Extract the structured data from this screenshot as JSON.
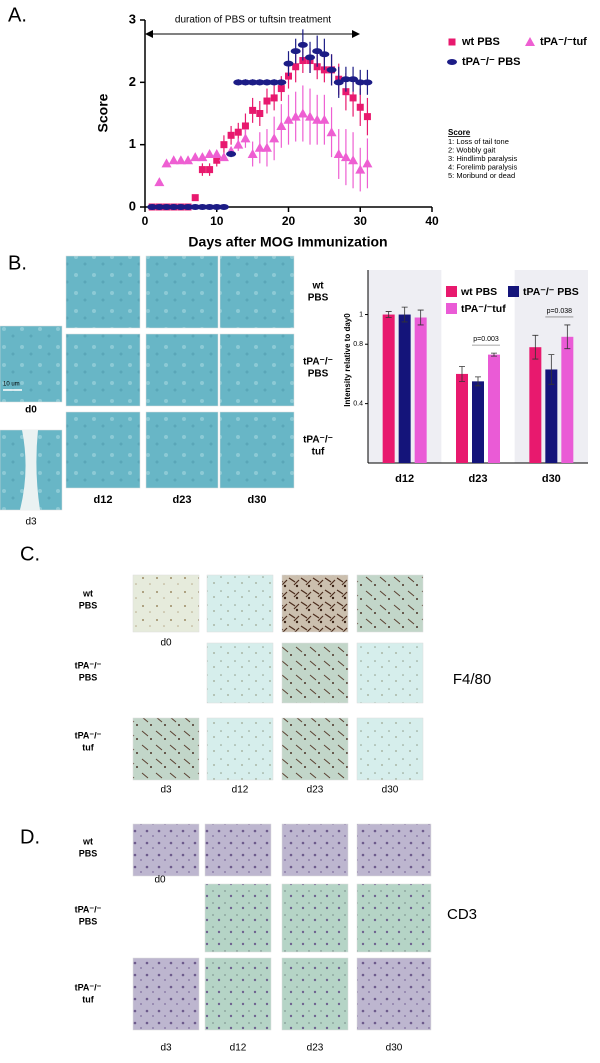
{
  "panel_labels": [
    "A.",
    "B.",
    "C.",
    "D."
  ],
  "chart_data": [
    {
      "type": "scatter",
      "ylabel": "Score",
      "xlabel": "Days after MOG Immunization",
      "annotation": "duration of PBS or tuftsin treatment",
      "xlim": [
        0,
        40
      ],
      "xticks": [
        0,
        10,
        20,
        30,
        40
      ],
      "ylim": [
        0,
        3
      ],
      "yticks": [
        0,
        1,
        2,
        3
      ],
      "series": [
        {
          "name": "wt PBS",
          "color": "#e8196e",
          "marker": "square",
          "x": [
            1,
            2,
            3,
            4,
            5,
            6,
            7,
            8,
            9,
            10,
            11,
            12,
            13,
            14,
            15,
            16,
            17,
            18,
            19,
            20,
            21,
            22,
            23,
            24,
            25,
            26,
            27,
            28,
            29,
            30,
            31
          ],
          "values": [
            0,
            0,
            0,
            0,
            0,
            0,
            0.15,
            0.6,
            0.6,
            0.75,
            1.0,
            1.15,
            1.2,
            1.3,
            1.55,
            1.5,
            1.7,
            1.75,
            1.9,
            2.1,
            2.25,
            2.35,
            2.35,
            2.25,
            2.2,
            2.2,
            2.05,
            1.85,
            1.75,
            1.6,
            1.45
          ],
          "errors": [
            0,
            0,
            0,
            0,
            0,
            0,
            0.05,
            0.1,
            0.1,
            0.1,
            0.15,
            0.15,
            0.15,
            0.2,
            0.2,
            0.2,
            0.2,
            0.2,
            0.2,
            0.2,
            0.25,
            0.2,
            0.2,
            0.2,
            0.2,
            0.25,
            0.25,
            0.3,
            0.3,
            0.3,
            0.3
          ]
        },
        {
          "name": "tPA⁻/⁻tuf",
          "color": "#ee5fd2",
          "marker": "triangle",
          "x": [
            2,
            3,
            4,
            5,
            6,
            7,
            8,
            9,
            10,
            11,
            12,
            13,
            14,
            15,
            16,
            17,
            18,
            19,
            20,
            21,
            22,
            23,
            24,
            25,
            26,
            27,
            28,
            29,
            30,
            31
          ],
          "values": [
            0.4,
            0.7,
            0.75,
            0.75,
            0.75,
            0.8,
            0.8,
            0.85,
            0.85,
            0.8,
            0.9,
            1.0,
            1.1,
            0.85,
            0.95,
            0.95,
            1.1,
            1.3,
            1.4,
            1.45,
            1.5,
            1.45,
            1.4,
            1.4,
            1.2,
            0.85,
            0.8,
            0.75,
            0.6,
            0.7
          ],
          "errors": [
            0.05,
            0.05,
            0.05,
            0.05,
            0.05,
            0.05,
            0.05,
            0.05,
            0.05,
            0.05,
            0.05,
            0.1,
            0.15,
            0.2,
            0.25,
            0.3,
            0.35,
            0.35,
            0.4,
            0.4,
            0.45,
            0.45,
            0.4,
            0.4,
            0.4,
            0.4,
            0.45,
            0.45,
            0.35,
            0.4
          ]
        },
        {
          "name": "tPA⁻/⁻ PBS",
          "color": "#1c1c86",
          "marker": "ellipse",
          "x": [
            1,
            2,
            3,
            4,
            5,
            6,
            7,
            8,
            9,
            10,
            11,
            12,
            13,
            14,
            15,
            16,
            17,
            18,
            19,
            20,
            21,
            22,
            23,
            24,
            25,
            26,
            27,
            28,
            29,
            30,
            31
          ],
          "values": [
            0,
            0,
            0,
            0,
            0,
            0,
            0,
            0,
            0,
            0,
            0,
            0.85,
            2.0,
            2.0,
            2.0,
            2.0,
            2.0,
            2.0,
            2.0,
            2.3,
            2.5,
            2.6,
            2.4,
            2.5,
            2.45,
            2.2,
            2.0,
            2.05,
            2.05,
            2.0,
            2.0
          ],
          "errors": [
            0,
            0,
            0,
            0,
            0,
            0,
            0,
            0,
            0,
            0,
            0,
            0.05,
            0.05,
            0.05,
            0.05,
            0.05,
            0.05,
            0.05,
            0.05,
            0.2,
            0.2,
            0.25,
            0.25,
            0.25,
            0.25,
            0.25,
            0.25,
            0.2,
            0.2,
            0.2,
            0.2
          ]
        }
      ],
      "score_key": {
        "title": "Score",
        "items": [
          "1: Loss of tail tone",
          "2: Wobbly gait",
          "3: Hindlimb paralysis",
          "4: Forelimb paralysis",
          "5: Moribund or dead"
        ]
      }
    },
    {
      "type": "bar",
      "ylabel": "Intensity relative to day0",
      "categories": [
        "d12",
        "d23",
        "d30"
      ],
      "ylim": [
        0,
        1.3
      ],
      "yticks": [
        0.4,
        0.8,
        1
      ],
      "series": [
        {
          "name": "wt PBS",
          "color": "#e8196e",
          "values": [
            1.0,
            0.6,
            0.78
          ],
          "errors": [
            0.02,
            0.05,
            0.08
          ]
        },
        {
          "name": "tPA⁻/⁻ PBS",
          "color": "#14147a",
          "values": [
            1.0,
            0.55,
            0.63
          ],
          "errors": [
            0.05,
            0.03,
            0.1
          ]
        },
        {
          "name": "tPA⁻/⁻tuf",
          "color": "#ea5bd6",
          "values": [
            0.98,
            0.73,
            0.85
          ],
          "errors": [
            0.05,
            0.01,
            0.08
          ]
        }
      ],
      "annotations": [
        {
          "text": "p=0.003",
          "category": "d23"
        },
        {
          "text": "p=0.038",
          "category": "d30"
        }
      ]
    }
  ],
  "histology": [
    {
      "rows": [
        [
          "wt",
          "PBS"
        ],
        [
          "tPA⁻/⁻",
          "PBS"
        ],
        [
          "tPA⁻/⁻",
          "tuf"
        ]
      ],
      "baseline": "d0",
      "columns": [
        "d3",
        "d12",
        "d23",
        "d30"
      ],
      "scale_bar": "10 um"
    },
    {
      "rows": [
        [
          "wt",
          "PBS"
        ],
        [
          "tPA⁻/⁻",
          "PBS"
        ],
        [
          "tPA⁻/⁻",
          "tuf"
        ]
      ],
      "baseline": "d0",
      "columns": [
        "d3",
        "d12",
        "d23",
        "d30"
      ],
      "stain": "F4/80"
    },
    {
      "rows": [
        [
          "wt",
          "PBS"
        ],
        [
          "tPA⁻/⁻",
          "PBS"
        ],
        [
          "tPA⁻/⁻",
          "tuf"
        ]
      ],
      "baseline": "d0",
      "columns": [
        "d3",
        "d12",
        "d23",
        "d30"
      ],
      "stain": "CD3"
    }
  ]
}
